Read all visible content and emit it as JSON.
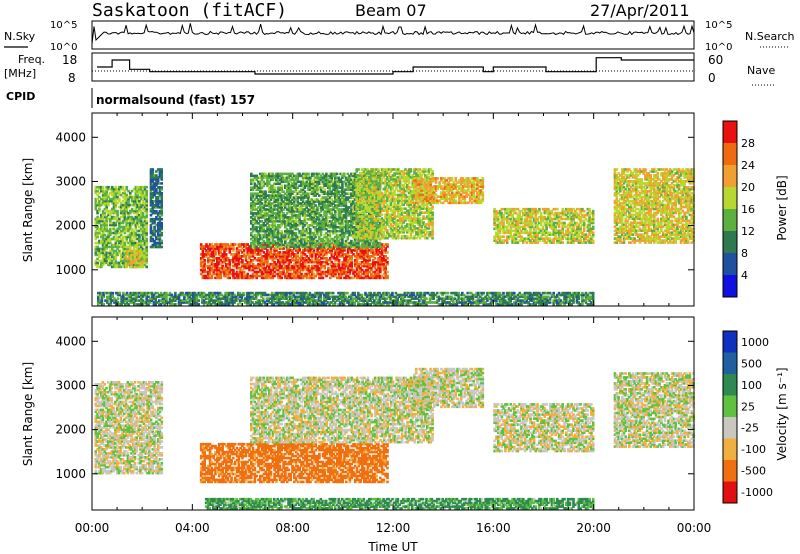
{
  "header": {
    "station": "Saskatoon (fitACF)",
    "beam": "Beam 07",
    "date": "27/Apr/2011"
  },
  "noise_panel": {
    "left_label": "N.Sky",
    "left_ticks": [
      "10^5",
      "10^0"
    ],
    "right_ticks": [
      "10^5",
      "10^0"
    ],
    "right_label": "N.Search"
  },
  "freq_panel": {
    "left_label_1": "Freq.",
    "left_label_2": "[MHz]",
    "left_ticks": [
      "18",
      "8"
    ],
    "right_ticks": [
      "60",
      "0"
    ],
    "right_label": "Nave"
  },
  "cpid": {
    "label": "CPID",
    "value": "normalsound (fast) 157"
  },
  "power_panel": {
    "ylabel": "Slant Range [km]",
    "yticks": [
      "1000",
      "2000",
      "3000",
      "4000"
    ],
    "colorbar_label": "Power [dB]",
    "colorbar_ticks": [
      "4",
      "8",
      "12",
      "16",
      "20",
      "24",
      "28"
    ],
    "colors": [
      "#1010e0",
      "#2050a0",
      "#2e7a50",
      "#5cb040",
      "#b8d830",
      "#f0a030",
      "#f06a10",
      "#e81010"
    ]
  },
  "velocity_panel": {
    "ylabel": "Slant Range [km]",
    "yticks": [
      "1000",
      "2000",
      "3000",
      "4000"
    ],
    "colorbar_label": "Velocity [m s⁻¹]",
    "colorbar_ticks": [
      "1000",
      "500",
      "100",
      "25",
      "-25",
      "-100",
      "-500",
      "-1000"
    ],
    "colors": [
      "#1030c0",
      "#2060a0",
      "#2e8a50",
      "#60c040",
      "#c8c8c0",
      "#f0b040",
      "#f07010",
      "#e01010"
    ]
  },
  "xaxis": {
    "label": "Time UT",
    "ticks": [
      "00:00",
      "04:00",
      "08:00",
      "12:00",
      "16:00",
      "20:00",
      "00:00"
    ]
  },
  "chart_data": {
    "type": "heatmap",
    "title": "Saskatoon (fitACF) Beam 07 27/Apr/2011",
    "xlabel": "Time UT",
    "ylabel": "Slant Range [km]",
    "xlim_hours": [
      0,
      24
    ],
    "ylim_km": [
      180,
      4550
    ],
    "power_colorbar": {
      "label": "Power [dB]",
      "range": [
        0,
        30
      ]
    },
    "velocity_colorbar": {
      "label": "Velocity [m s⁻¹]",
      "levels": [
        1000,
        500,
        100,
        25,
        -25,
        -100,
        -500,
        -1000
      ]
    },
    "frequency_mhz_steps": [
      {
        "start_h": 0.2,
        "end_h": 0.8,
        "freq": 12
      },
      {
        "start_h": 0.8,
        "end_h": 1.5,
        "freq": 15
      },
      {
        "start_h": 1.5,
        "end_h": 2.3,
        "freq": 11
      },
      {
        "start_h": 2.3,
        "end_h": 6.5,
        "freq": 10
      },
      {
        "start_h": 6.5,
        "end_h": 12.0,
        "freq": 9
      },
      {
        "start_h": 12.0,
        "end_h": 12.8,
        "freq": 10
      },
      {
        "start_h": 12.8,
        "end_h": 15.6,
        "freq": 12
      },
      {
        "start_h": 15.6,
        "end_h": 16.0,
        "freq": 10
      },
      {
        "start_h": 16.0,
        "end_h": 18.1,
        "freq": 12
      },
      {
        "start_h": 18.1,
        "end_h": 20.1,
        "freq": 10
      },
      {
        "start_h": 20.1,
        "end_h": 21.1,
        "freq": 16
      },
      {
        "start_h": 21.1,
        "end_h": 24.0,
        "freq": 15
      }
    ],
    "power_regions": [
      {
        "t0": 0.1,
        "t1": 2.2,
        "r0": 1050,
        "r1": 2900,
        "level": 14
      },
      {
        "t0": 1.3,
        "t1": 2.1,
        "r0": 1050,
        "r1": 1450,
        "level": 18
      },
      {
        "t0": 2.3,
        "t1": 2.8,
        "r0": 1500,
        "r1": 3300,
        "level": 8
      },
      {
        "t0": 4.3,
        "t1": 11.8,
        "r0": 800,
        "r1": 1600,
        "level": 26
      },
      {
        "t0": 6.3,
        "t1": 11.5,
        "r0": 1500,
        "r1": 3200,
        "level": 12
      },
      {
        "t0": 10.5,
        "t1": 13.6,
        "r0": 1700,
        "r1": 3300,
        "level": 16
      },
      {
        "t0": 12.8,
        "t1": 15.6,
        "r0": 2500,
        "r1": 3100,
        "level": 20
      },
      {
        "t0": 16.0,
        "t1": 20.0,
        "r0": 1600,
        "r1": 2400,
        "level": 17
      },
      {
        "t0": 20.8,
        "t1": 24.0,
        "r0": 1600,
        "r1": 3300,
        "level": 18
      },
      {
        "t0": 0.2,
        "t1": 20.0,
        "r0": 200,
        "r1": 500,
        "level": 10
      }
    ],
    "velocity_regions": [
      {
        "t0": 0.1,
        "t1": 2.8,
        "r0": 1000,
        "r1": 3100,
        "level": 0
      },
      {
        "t0": 4.3,
        "t1": 11.8,
        "r0": 800,
        "r1": 1700,
        "level": -150
      },
      {
        "t0": 6.3,
        "t1": 13.6,
        "r0": 1700,
        "r1": 3200,
        "level": 0
      },
      {
        "t0": 12.8,
        "t1": 15.6,
        "r0": 2500,
        "r1": 3400,
        "level": 0
      },
      {
        "t0": 16.0,
        "t1": 20.0,
        "r0": 1500,
        "r1": 2600,
        "level": 0
      },
      {
        "t0": 20.8,
        "t1": 24.0,
        "r0": 1600,
        "r1": 3300,
        "level": 0
      },
      {
        "t0": 4.5,
        "t1": 20.0,
        "r0": 200,
        "r1": 450,
        "level": 80
      }
    ]
  }
}
